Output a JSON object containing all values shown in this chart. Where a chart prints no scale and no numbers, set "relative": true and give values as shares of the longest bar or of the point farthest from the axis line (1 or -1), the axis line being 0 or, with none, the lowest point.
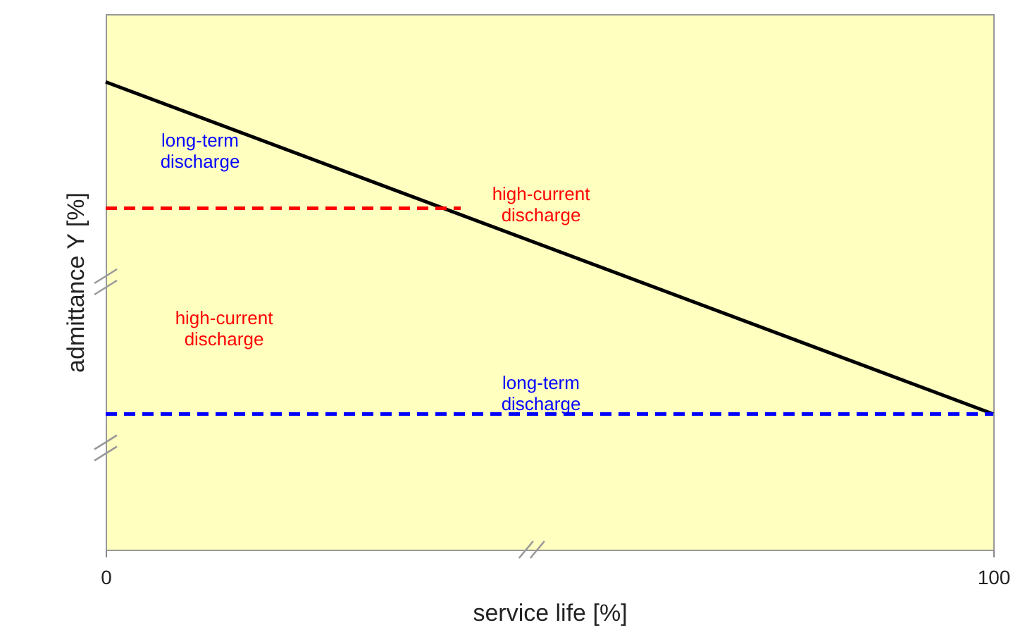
{
  "chart_data": {
    "type": "line",
    "xlabel": "service life [%]",
    "ylabel": "admittance Y [%]",
    "relative": true,
    "xlim": [
      0,
      100
    ],
    "xticks": [
      0,
      100
    ],
    "grid": false,
    "marker": "none",
    "series": [
      {
        "color": "#000000",
        "x": [
          0,
          100
        ],
        "values": [
          1,
          0.29
        ],
        "line_style": "solid"
      },
      {
        "color": "#ff0000",
        "x": [
          0,
          40
        ],
        "values": [
          0.73,
          0.73
        ],
        "line_style": "dashed"
      },
      {
        "color": "#0000ff",
        "x": [
          0,
          100
        ],
        "values": [
          0.29,
          0.29
        ],
        "line_style": "dashed"
      }
    ],
    "annotations": [
      "long-term discharge",
      "high-current discharge",
      "high-current discharge",
      "long-term discharge"
    ]
  }
}
